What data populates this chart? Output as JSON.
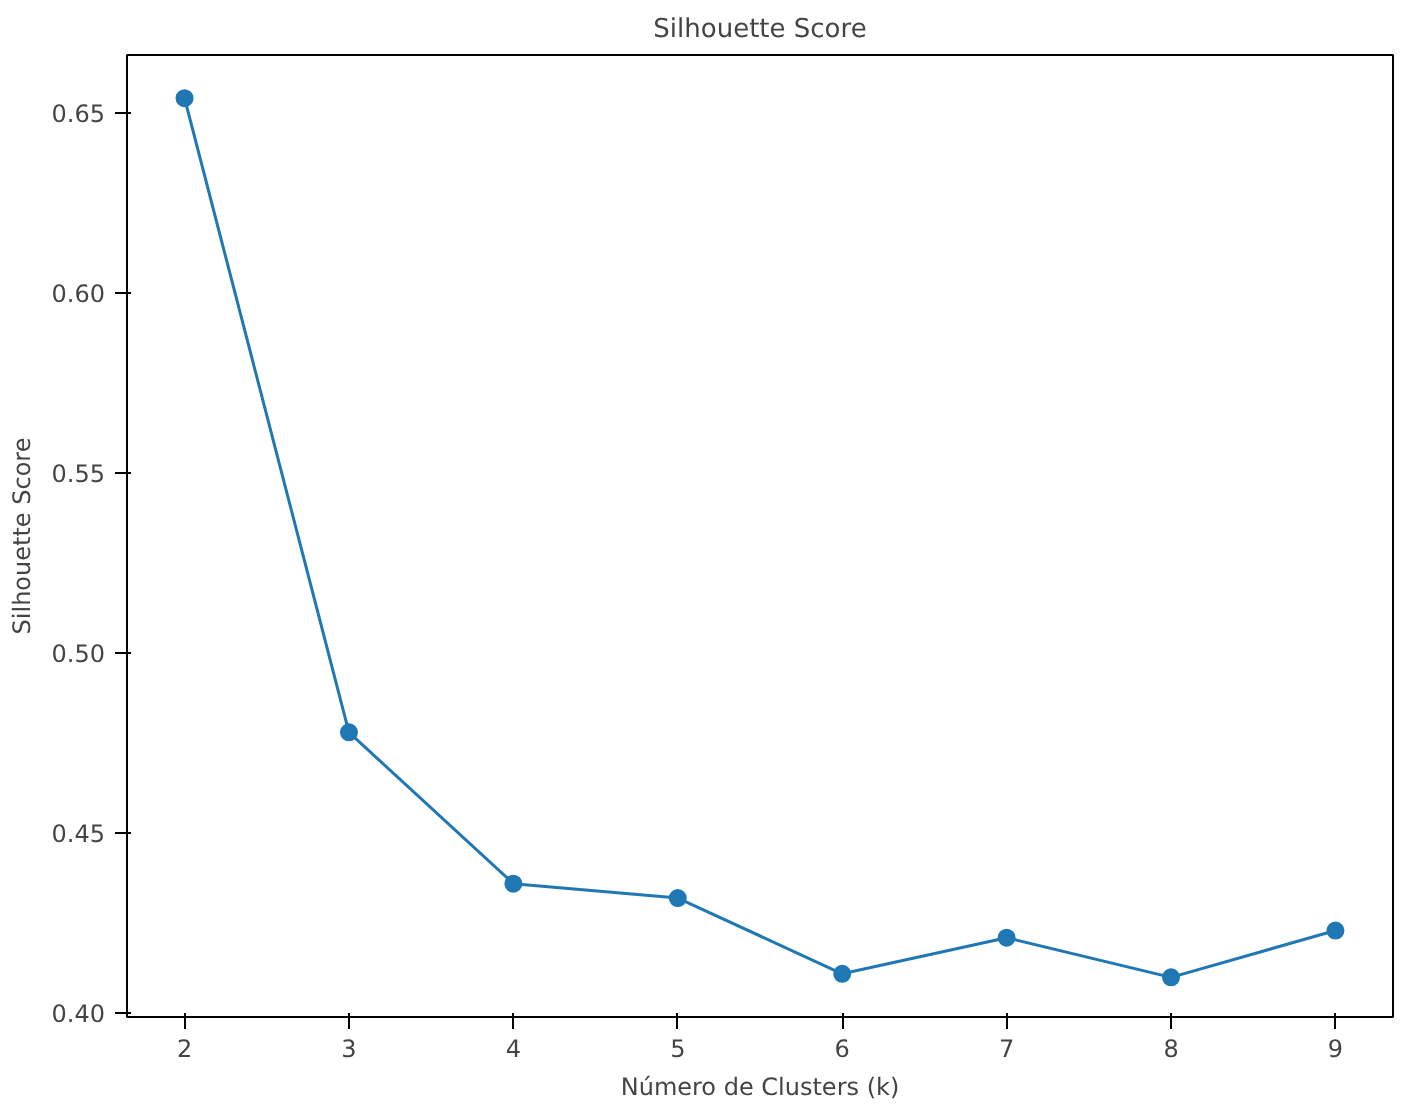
{
  "chart_data": {
    "type": "line",
    "title": "Silhouette Score",
    "xlabel": "Número de Clusters (k)",
    "ylabel": "Silhouette Score",
    "x": [
      2,
      3,
      4,
      5,
      6,
      7,
      8,
      9
    ],
    "series": [
      {
        "color": "#1f77b4",
        "values": [
          0.654,
          0.478,
          0.436,
          0.432,
          0.411,
          0.421,
          0.41,
          0.423
        ]
      }
    ],
    "xlim": [
      1.65,
      9.35
    ],
    "ylim": [
      0.399,
      0.666
    ],
    "xticks": [
      2,
      3,
      4,
      5,
      6,
      7,
      8,
      9
    ],
    "yticks": [
      {
        "value": 0.4,
        "label": "0.40"
      },
      0.45,
      {
        "value": 0.5,
        "label": "0.50"
      },
      0.55,
      {
        "value": 0.6,
        "label": "0.60"
      },
      0.65
    ],
    "marker": "circle",
    "line_style": "solid",
    "grid": false
  }
}
